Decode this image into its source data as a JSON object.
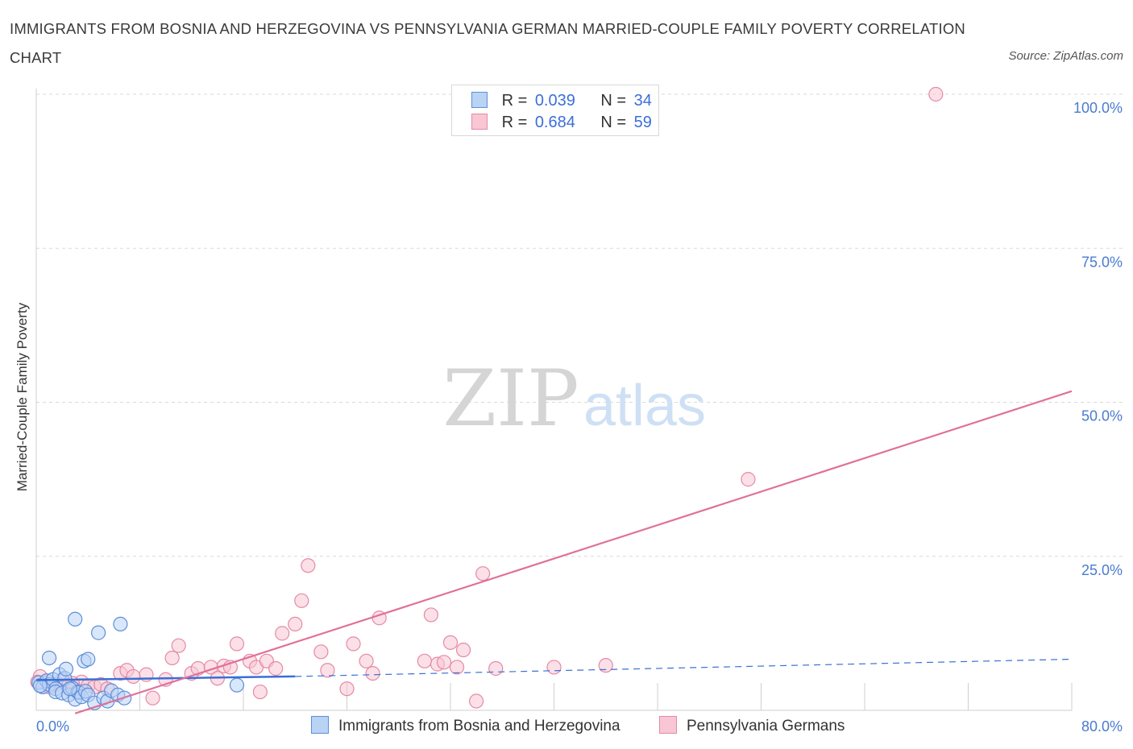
{
  "title": "IMMIGRANTS FROM BOSNIA AND HERZEGOVINA VS PENNSYLVANIA GERMAN MARRIED-COUPLE FAMILY POVERTY CORRELATION CHART",
  "source": "Source: ZipAtlas.com",
  "watermark": {
    "zip": "ZIP",
    "atlas": "atlas"
  },
  "legend": {
    "r_label": "R =",
    "n_label": "N =",
    "rows": [
      {
        "r": "0.039",
        "n": "34"
      },
      {
        "r": "0.684",
        "n": "59"
      }
    ]
  },
  "colors": {
    "blue_fill": "#b9d3f5",
    "blue_stroke": "#5e8ed9",
    "blue_line": "#3a6fd4",
    "pink_fill": "#f8c6d4",
    "pink_stroke": "#e58aa7",
    "pink_line": "#e0709a",
    "tick_text": "#4a7bd0",
    "grid": "#d9d9d9"
  },
  "chart_data": {
    "type": "scatter",
    "title": "IMMIGRANTS FROM BOSNIA AND HERZEGOVINA VS PENNSYLVANIA GERMAN MARRIED-COUPLE FAMILY POVERTY CORRELATION CHART",
    "xlabel": "",
    "ylabel": "Married-Couple Family Poverty",
    "xlim": [
      0,
      80
    ],
    "ylim": [
      0,
      100
    ],
    "x_tick_labels": [
      "0.0%",
      "80.0%"
    ],
    "y_ticks": [
      25,
      50,
      75,
      100
    ],
    "y_tick_labels": [
      "25.0%",
      "50.0%",
      "75.0%",
      "100.0%"
    ],
    "grid": true,
    "legend_position": "top-center",
    "series": [
      {
        "name": "Immigrants from Bosnia and Herzegovina",
        "color": "#5e8ed9",
        "points": [
          [
            0.2,
            4.5
          ],
          [
            0.5,
            3.8
          ],
          [
            0.8,
            4.8
          ],
          [
            1.0,
            4.2
          ],
          [
            1.3,
            5.0
          ],
          [
            1.5,
            3.5
          ],
          [
            1.0,
            8.5
          ],
          [
            1.5,
            3.0
          ],
          [
            1.8,
            5.8
          ],
          [
            2.0,
            2.8
          ],
          [
            2.2,
            5.2
          ],
          [
            2.3,
            6.7
          ],
          [
            2.5,
            2.5
          ],
          [
            2.8,
            3.6
          ],
          [
            3.0,
            1.8
          ],
          [
            3.0,
            14.8
          ],
          [
            3.2,
            3.0
          ],
          [
            3.3,
            2.9
          ],
          [
            3.5,
            2.2
          ],
          [
            3.7,
            8.0
          ],
          [
            3.8,
            3.1
          ],
          [
            4.0,
            2.5
          ],
          [
            4.0,
            8.3
          ],
          [
            4.5,
            1.2
          ],
          [
            4.8,
            12.6
          ],
          [
            5.2,
            2.0
          ],
          [
            5.5,
            1.5
          ],
          [
            5.8,
            3.2
          ],
          [
            6.3,
            2.5
          ],
          [
            6.5,
            14.0
          ],
          [
            6.8,
            2.0
          ],
          [
            15.5,
            4.1
          ],
          [
            0.3,
            4.0
          ],
          [
            2.6,
            3.5
          ]
        ],
        "trend": {
          "x1": 0,
          "y1": 4.9,
          "x2": 20,
          "y2": 5.5,
          "dashed_to_x": 80,
          "dashed_to_y": 8.3
        }
      },
      {
        "name": "Pennsylvania Germans",
        "color": "#e58aa7",
        "points": [
          [
            0.3,
            5.5
          ],
          [
            0.6,
            4.5
          ],
          [
            1.0,
            3.8
          ],
          [
            1.5,
            4.2
          ],
          [
            2.0,
            5.0
          ],
          [
            2.5,
            4.0
          ],
          [
            3.0,
            3.5
          ],
          [
            3.5,
            4.6
          ],
          [
            4.0,
            4.0
          ],
          [
            4.5,
            3.8
          ],
          [
            5.0,
            4.2
          ],
          [
            5.5,
            3.5
          ],
          [
            6.5,
            6.0
          ],
          [
            7.0,
            6.5
          ],
          [
            7.5,
            5.5
          ],
          [
            8.5,
            5.8
          ],
          [
            9.0,
            2.0
          ],
          [
            10.0,
            5.0
          ],
          [
            10.5,
            8.5
          ],
          [
            11.0,
            10.5
          ],
          [
            12.0,
            6.0
          ],
          [
            12.5,
            6.8
          ],
          [
            13.5,
            7.0
          ],
          [
            14.0,
            5.2
          ],
          [
            14.5,
            7.2
          ],
          [
            15.0,
            7.0
          ],
          [
            15.5,
            10.8
          ],
          [
            16.5,
            8.0
          ],
          [
            17.0,
            7.0
          ],
          [
            17.3,
            3.0
          ],
          [
            17.8,
            8.0
          ],
          [
            18.5,
            6.8
          ],
          [
            19.0,
            12.5
          ],
          [
            20.0,
            14.0
          ],
          [
            20.5,
            17.8
          ],
          [
            21.0,
            23.5
          ],
          [
            22.0,
            9.5
          ],
          [
            22.5,
            6.5
          ],
          [
            24.0,
            3.5
          ],
          [
            24.5,
            10.8
          ],
          [
            25.5,
            8.0
          ],
          [
            26.0,
            6.0
          ],
          [
            26.5,
            15.0
          ],
          [
            30.0,
            8.0
          ],
          [
            30.5,
            15.5
          ],
          [
            31.0,
            7.5
          ],
          [
            31.5,
            7.8
          ],
          [
            32.0,
            11.0
          ],
          [
            32.5,
            7.0
          ],
          [
            33.0,
            9.8
          ],
          [
            34.0,
            1.5
          ],
          [
            34.5,
            22.2
          ],
          [
            35.5,
            6.8
          ],
          [
            40.0,
            7.0
          ],
          [
            44.0,
            7.3
          ],
          [
            55.0,
            37.5
          ],
          [
            69.5,
            100.0
          ],
          [
            0.1,
            4.6
          ],
          [
            2.8,
            4.4
          ]
        ],
        "trend": {
          "x1": 3,
          "y1": -0.5,
          "x2": 80,
          "y2": 51.8
        }
      }
    ]
  }
}
